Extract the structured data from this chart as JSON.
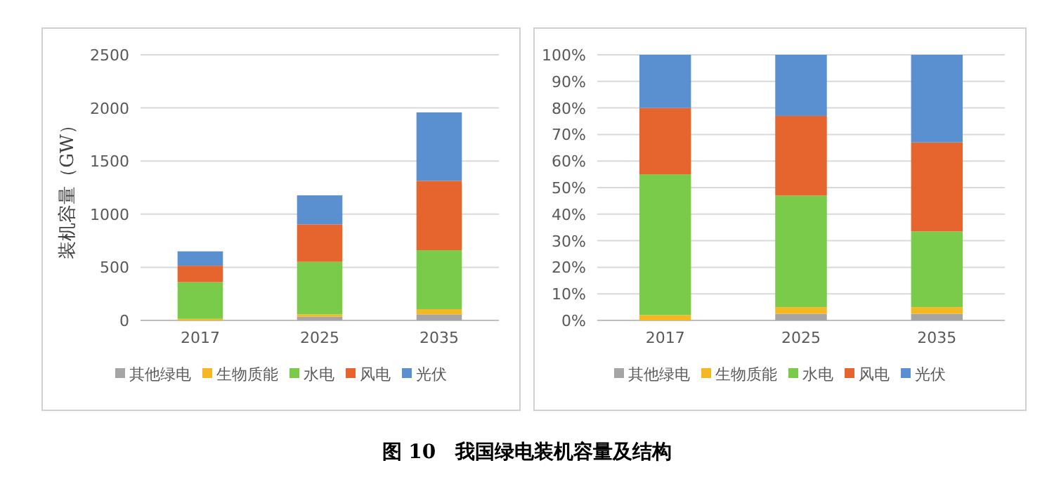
{
  "chart_data": [
    {
      "type": "bar",
      "stacked": true,
      "categories": [
        "2017",
        "2025",
        "2035"
      ],
      "ylabel": "装机容量（GW）",
      "ylim": [
        0,
        2500
      ],
      "yticks": [
        0,
        500,
        1000,
        1500,
        2000,
        2500
      ],
      "grid": "y",
      "legend": "bottom",
      "series": [
        {
          "name": "其他绿电",
          "color": "#a5a5a5",
          "values": [
            0,
            35,
            57
          ]
        },
        {
          "name": "生物质能",
          "color": "#f5b822",
          "values": [
            15,
            22,
            49
          ]
        },
        {
          "name": "水电",
          "color": "#7acb4a",
          "values": [
            345,
            494,
            555
          ]
        },
        {
          "name": "风电",
          "color": "#e6652e",
          "values": [
            155,
            353,
            653
          ]
        },
        {
          "name": "光伏",
          "color": "#5b90d0",
          "values": [
            135,
            273,
            644
          ]
        }
      ],
      "annotations": [
        "图 10　我国绿电装机容量及结构"
      ]
    },
    {
      "type": "bar",
      "stacked": true,
      "categories": [
        "2017",
        "2025",
        "2035"
      ],
      "ylim": [
        0,
        100
      ],
      "yticks": [
        {
          "value": 0,
          "label": "0%"
        },
        {
          "value": 10,
          "label": "10%"
        },
        {
          "value": 20,
          "label": "20%"
        },
        {
          "value": 30,
          "label": "30%"
        },
        {
          "value": 40,
          "label": "40%"
        },
        {
          "value": 50,
          "label": "50%"
        },
        {
          "value": 60,
          "label": "60%"
        },
        {
          "value": 70,
          "label": "70%"
        },
        {
          "value": 80,
          "label": "80%"
        },
        {
          "value": 90,
          "label": "90%"
        },
        {
          "value": 100,
          "label": "100%"
        }
      ],
      "grid": "y",
      "legend": "bottom",
      "series": [
        {
          "name": "其他绿电",
          "color": "#a5a5a5",
          "values": [
            0,
            2.5,
            2.5
          ]
        },
        {
          "name": "生物质能",
          "color": "#f5b822",
          "values": [
            2,
            2.5,
            2.5
          ]
        },
        {
          "name": "水电",
          "color": "#7acb4a",
          "values": [
            53,
            42,
            28.5
          ]
        },
        {
          "name": "风电",
          "color": "#e6652e",
          "values": [
            25,
            30,
            33.5
          ]
        },
        {
          "name": "光伏",
          "color": "#5b90d0",
          "values": [
            20,
            23,
            33
          ]
        }
      ]
    }
  ]
}
